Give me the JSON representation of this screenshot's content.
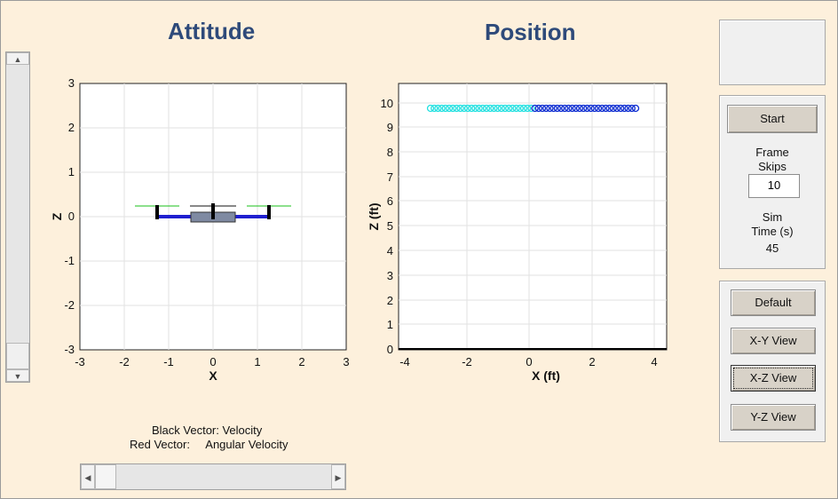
{
  "titles": {
    "attitude": "Attitude",
    "position": "Position"
  },
  "attitude_plot": {
    "xlabel": "X",
    "ylabel": "Z",
    "xticks": [
      "-3",
      "-2",
      "-1",
      "0",
      "1",
      "2",
      "3"
    ],
    "yticks": [
      "3",
      "2",
      "1",
      "0",
      "-1",
      "-2",
      "-3"
    ]
  },
  "position_plot": {
    "xlabel": "X (ft)",
    "ylabel": "Z (ft)",
    "xticks": [
      "-4",
      "-2",
      "0",
      "2",
      "4"
    ],
    "yticks": [
      "10",
      "9",
      "8",
      "7",
      "6",
      "5",
      "4",
      "3",
      "2",
      "1",
      "0"
    ]
  },
  "legend": {
    "line1": "Black Vector: Velocity",
    "line2": "Red Vector:     Angular Velocity"
  },
  "controls": {
    "start": "Start",
    "frame_skips_label": "Frame\nSkips",
    "frame_skips_value": "10",
    "sim_time_label": "Sim\nTime (s)",
    "sim_time_value": "45"
  },
  "views": {
    "default": "Default",
    "xy": "X-Y View",
    "xz": "X-Z View",
    "yz": "Y-Z View"
  },
  "colors": {
    "background": "#fdf0dc",
    "title": "#2e4a7a",
    "arm": "#1f1fd0",
    "rotor": "#18c018",
    "trail_old": "#22e0e0",
    "trail_new": "#0a2ad0"
  },
  "icons": {
    "up": "arrow-up-icon",
    "down": "arrow-down-icon",
    "left": "arrow-left-icon",
    "right": "arrow-right-icon"
  }
}
